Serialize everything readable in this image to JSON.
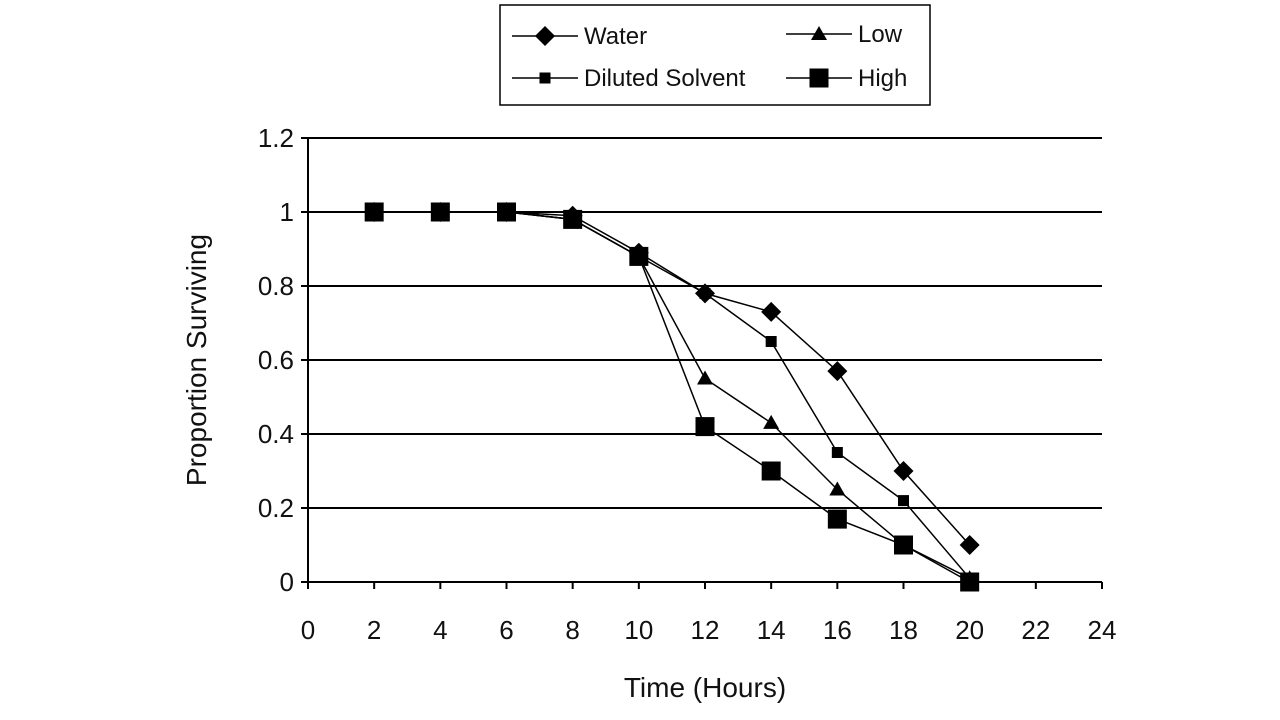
{
  "chart_data": {
    "type": "line",
    "title": "",
    "xlabel": "Time (Hours)",
    "ylabel": "Proportion Surviving",
    "xlim": [
      0,
      24
    ],
    "ylim": [
      0,
      1.2
    ],
    "x_ticks": [
      "0",
      "2",
      "4",
      "6",
      "8",
      "10",
      "12",
      "14",
      "16",
      "18",
      "20",
      "22",
      "24"
    ],
    "y_ticks": [
      "0",
      "0.2",
      "0.4",
      "0.6",
      "0.8",
      "1",
      "1.2"
    ],
    "grid": "horizontal",
    "legend_position": "top-center",
    "x": [
      2,
      4,
      6,
      8,
      10,
      12,
      14,
      16,
      18,
      20
    ],
    "series": [
      {
        "name": "Water",
        "marker": "diamond",
        "values": [
          1,
          1,
          1,
          0.99,
          0.89,
          0.78,
          0.73,
          0.57,
          0.3,
          0.1
        ]
      },
      {
        "name": "Low",
        "marker": "triangle",
        "values": [
          1,
          1,
          1,
          0.98,
          0.88,
          0.55,
          0.43,
          0.25,
          0.1,
          0.01
        ]
      },
      {
        "name": "Diluted Solvent",
        "marker": "small-square",
        "values": [
          1,
          1,
          1,
          0.98,
          0.88,
          0.78,
          0.65,
          0.35,
          0.22,
          0.01
        ]
      },
      {
        "name": "High",
        "marker": "large-square",
        "values": [
          1,
          1,
          1,
          0.98,
          0.88,
          0.42,
          0.3,
          0.17,
          0.1,
          0.0
        ]
      }
    ],
    "colors": {
      "line": "#000000",
      "grid": "#000000"
    }
  }
}
